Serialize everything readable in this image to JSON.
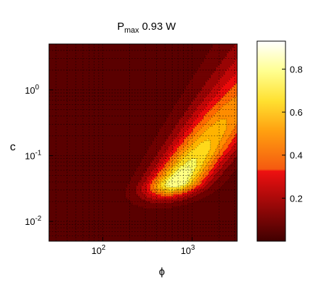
{
  "chart_data": {
    "type": "heatmap",
    "title_main": "P",
    "title_sub": "max",
    "title_rest": " 0.93 W",
    "xlabel": "ϕ",
    "ylabel": "c",
    "x_scale": "log",
    "y_scale": "log",
    "xlim": [
      25,
      3200
    ],
    "ylim": [
      0.005,
      5
    ],
    "x_ticks": [
      {
        "value": 100,
        "label": "10",
        "exp": "2"
      },
      {
        "value": 1000,
        "label": "10",
        "exp": "3"
      }
    ],
    "y_ticks": [
      {
        "value": 0.01,
        "label": "10",
        "exp": "-2"
      },
      {
        "value": 0.1,
        "label": "10",
        "exp": "-1"
      },
      {
        "value": 1,
        "label": "10",
        "exp": "0"
      }
    ],
    "grid": true,
    "colormap": "hot",
    "colorbar": {
      "range": [
        0,
        0.93
      ],
      "ticks": [
        {
          "value": 0.2,
          "label": "0.2"
        },
        {
          "value": 0.4,
          "label": "0.4"
        },
        {
          "value": 0.6,
          "label": "0.6"
        },
        {
          "value": 0.8,
          "label": "0.8"
        }
      ]
    },
    "peak": {
      "x": 800,
      "y": 0.04,
      "value": 0.93
    },
    "contour_levels": [
      0.05,
      0.15,
      0.25,
      0.35,
      0.45,
      0.55,
      0.65,
      0.75,
      0.85,
      0.9
    ]
  }
}
